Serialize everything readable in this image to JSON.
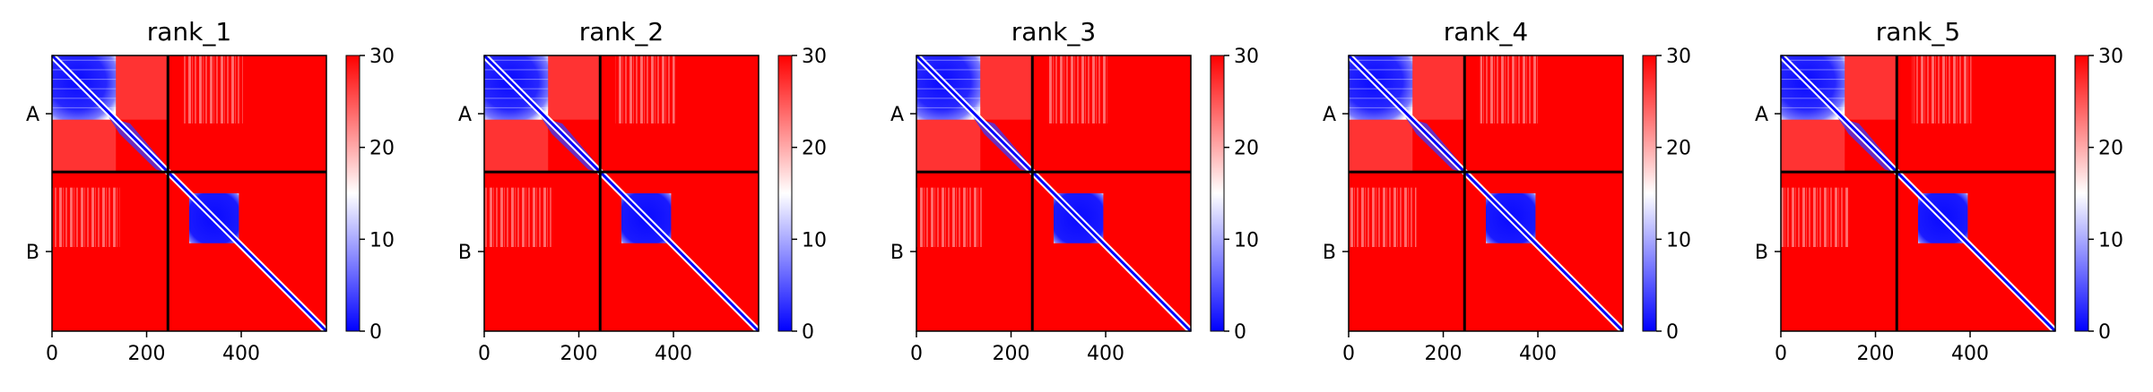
{
  "chart_data": [
    {
      "type": "heatmap",
      "title": "rank_1",
      "x_ticks": [
        "0",
        "200",
        "400"
      ],
      "y_tick_labels": [
        "A",
        "B"
      ],
      "chain_boundary": 245,
      "total_length": 580,
      "colorbar": {
        "min": 0,
        "max": 30,
        "ticks": [
          "0",
          "10",
          "20",
          "30"
        ],
        "colors": {
          "low": "#0000ff",
          "mid": "#ffffff",
          "high": "#ff0000"
        }
      },
      "blocks": [
        {
          "start": 0,
          "end": 135,
          "mean": 5
        },
        {
          "start": 290,
          "end": 395,
          "mean": 4
        }
      ]
    },
    {
      "type": "heatmap",
      "title": "rank_2",
      "x_ticks": [
        "0",
        "200",
        "400"
      ],
      "y_tick_labels": [
        "A",
        "B"
      ],
      "chain_boundary": 245,
      "total_length": 580,
      "colorbar": {
        "min": 0,
        "max": 30,
        "ticks": [
          "0",
          "10",
          "20",
          "30"
        ],
        "colors": {
          "low": "#0000ff",
          "mid": "#ffffff",
          "high": "#ff0000"
        }
      },
      "blocks": [
        {
          "start": 0,
          "end": 135,
          "mean": 5
        },
        {
          "start": 290,
          "end": 395,
          "mean": 4
        }
      ]
    },
    {
      "type": "heatmap",
      "title": "rank_3",
      "x_ticks": [
        "0",
        "200",
        "400"
      ],
      "y_tick_labels": [
        "A",
        "B"
      ],
      "chain_boundary": 245,
      "total_length": 580,
      "colorbar": {
        "min": 0,
        "max": 30,
        "ticks": [
          "0",
          "10",
          "20",
          "30"
        ],
        "colors": {
          "low": "#0000ff",
          "mid": "#ffffff",
          "high": "#ff0000"
        }
      },
      "blocks": [
        {
          "start": 0,
          "end": 135,
          "mean": 5
        },
        {
          "start": 290,
          "end": 395,
          "mean": 4
        }
      ]
    },
    {
      "type": "heatmap",
      "title": "rank_4",
      "x_ticks": [
        "0",
        "200",
        "400"
      ],
      "y_tick_labels": [
        "A",
        "B"
      ],
      "chain_boundary": 245,
      "total_length": 580,
      "colorbar": {
        "min": 0,
        "max": 30,
        "ticks": [
          "0",
          "10",
          "20",
          "30"
        ],
        "colors": {
          "low": "#0000ff",
          "mid": "#ffffff",
          "high": "#ff0000"
        }
      },
      "blocks": [
        {
          "start": 0,
          "end": 135,
          "mean": 5
        },
        {
          "start": 290,
          "end": 395,
          "mean": 4
        }
      ]
    },
    {
      "type": "heatmap",
      "title": "rank_5",
      "x_ticks": [
        "0",
        "200",
        "400"
      ],
      "y_tick_labels": [
        "A",
        "B"
      ],
      "chain_boundary": 245,
      "total_length": 580,
      "colorbar": {
        "min": 0,
        "max": 30,
        "ticks": [
          "0",
          "10",
          "20",
          "30"
        ],
        "colors": {
          "low": "#0000ff",
          "mid": "#ffffff",
          "high": "#ff0000"
        }
      },
      "blocks": [
        {
          "start": 0,
          "end": 135,
          "mean": 5
        },
        {
          "start": 290,
          "end": 395,
          "mean": 4
        }
      ]
    }
  ]
}
